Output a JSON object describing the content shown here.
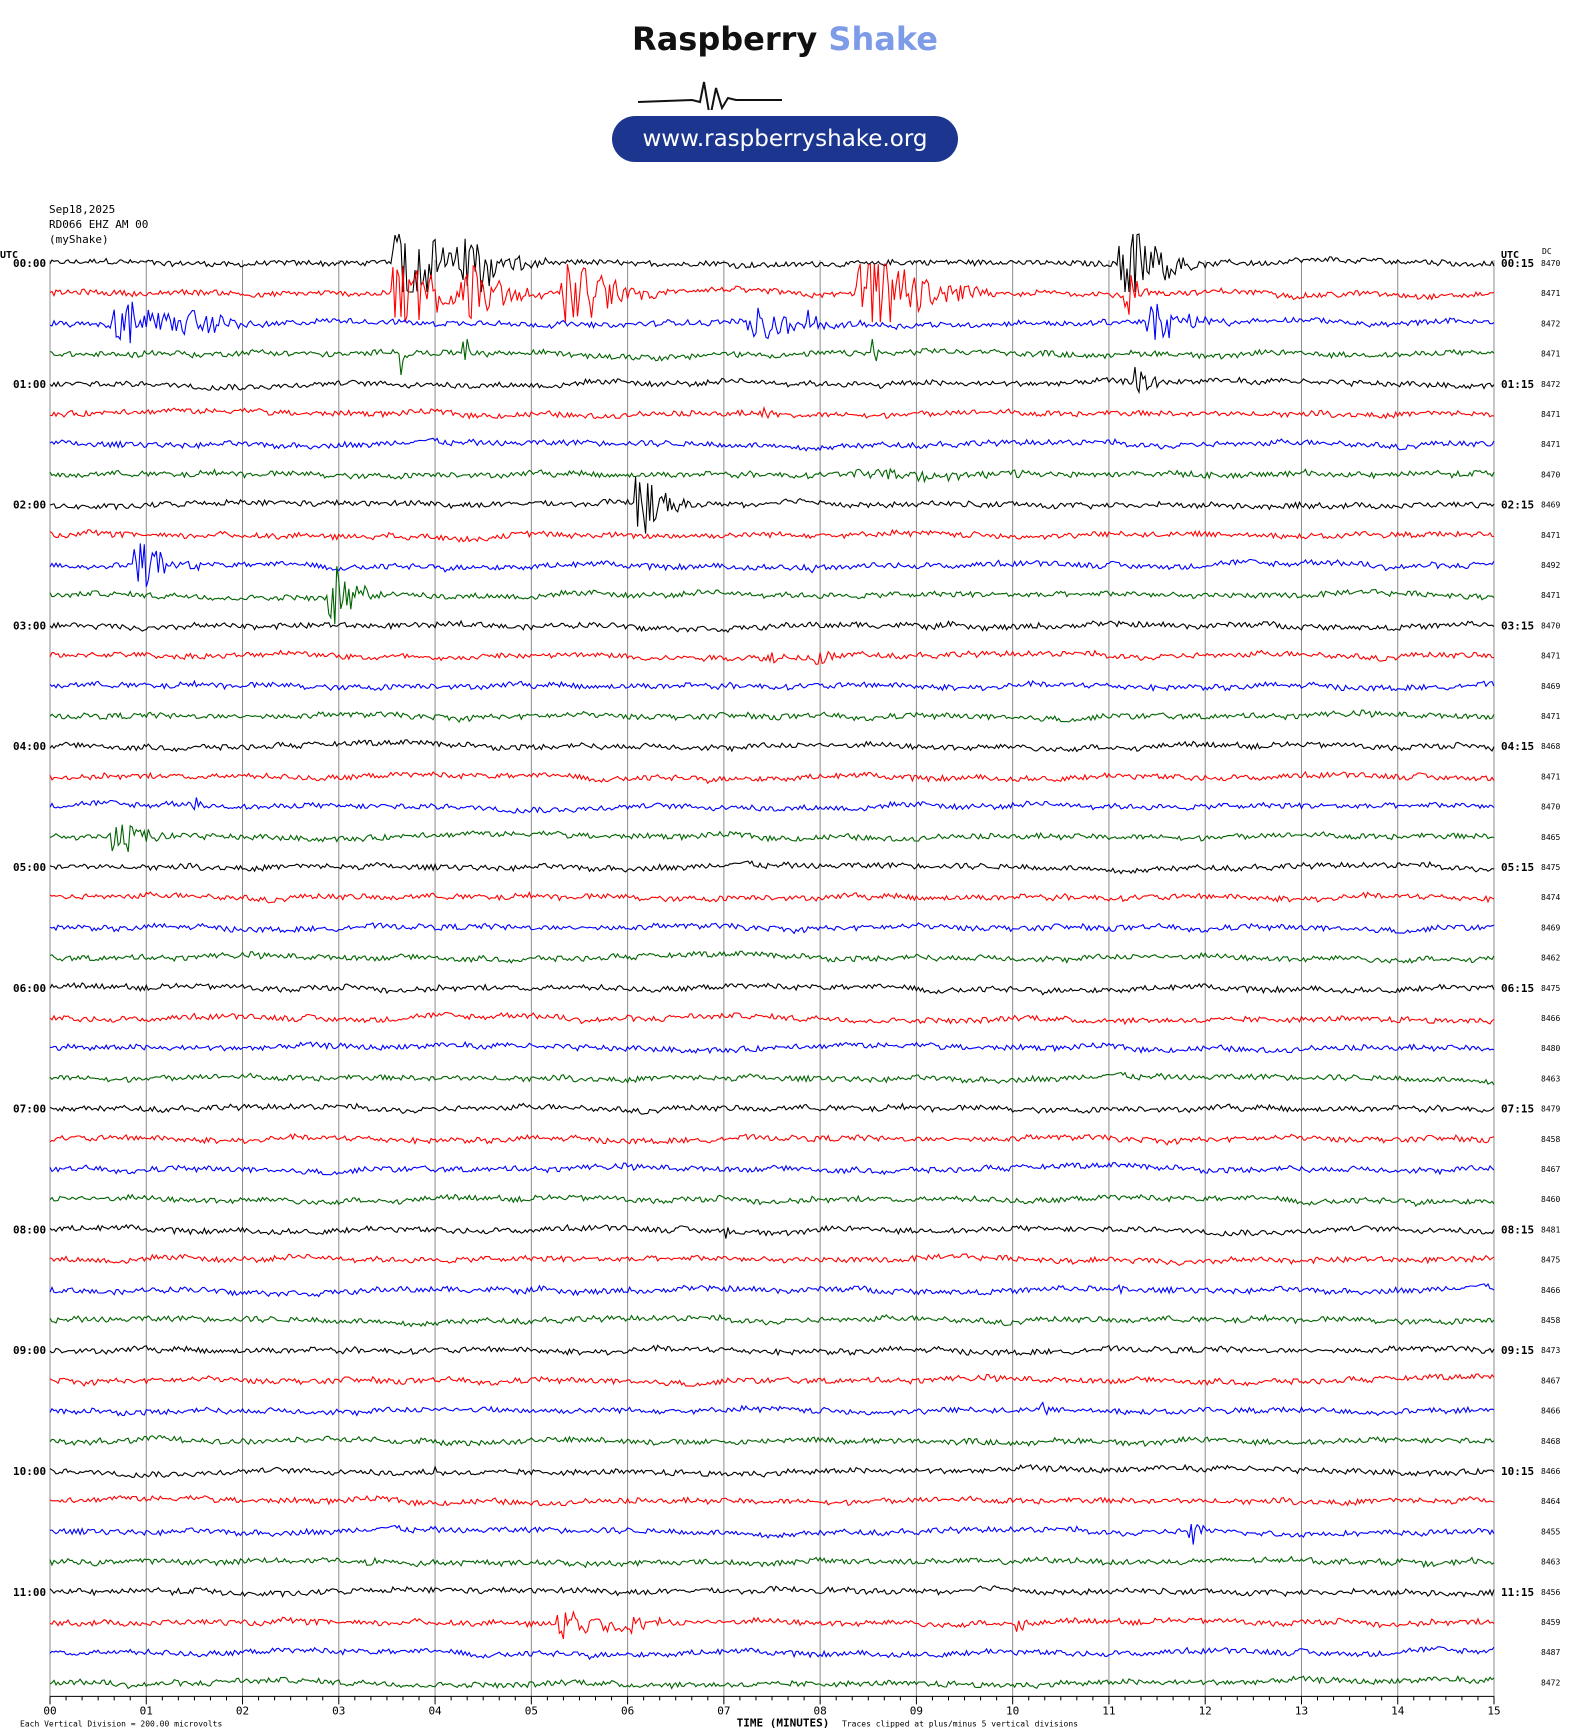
{
  "logo": {
    "brand_part1": "Raspberry",
    "brand_part2": "Shake",
    "website": "www.raspberryshake.org",
    "accent_color": "#7e9be8",
    "pill_color": "#1c3690"
  },
  "header": {
    "date": "Sep18,2025",
    "station": "RD066 EHZ AM 00",
    "source": "(myShake)"
  },
  "chart_data": {
    "type": "line",
    "chart_kind": "helicorder",
    "left_axis_label": "UTC",
    "right_axis_label": "UTC",
    "dc_label": "DC",
    "xlabel": "TIME (MINUTES)",
    "xlim": [
      0,
      15
    ],
    "x_ticks": [
      "00",
      "01",
      "02",
      "03",
      "04",
      "05",
      "06",
      "07",
      "08",
      "09",
      "10",
      "11",
      "12",
      "13",
      "14",
      "15"
    ],
    "footer_left": "Each Vertical Division =  200.00 microvolts",
    "footer_right": "Traces clipped at plus/minus 5 vertical divisions",
    "trace_colors": [
      "#000000",
      "#ff0000",
      "#0000ff",
      "#006400"
    ],
    "hours": [
      {
        "left": "00:00",
        "right": "00:15"
      },
      {
        "left": "01:00",
        "right": "01:15"
      },
      {
        "left": "02:00",
        "right": "02:15"
      },
      {
        "left": "03:00",
        "right": "03:15"
      },
      {
        "left": "04:00",
        "right": "04:15"
      },
      {
        "left": "05:00",
        "right": "05:15"
      },
      {
        "left": "06:00",
        "right": "06:15"
      },
      {
        "left": "07:00",
        "right": "07:15"
      },
      {
        "left": "08:00",
        "right": "08:15"
      },
      {
        "left": "09:00",
        "right": "09:15"
      },
      {
        "left": "10:00",
        "right": "10:15"
      },
      {
        "left": "11:00",
        "right": "11:15"
      }
    ],
    "dc_values": [
      "8470",
      "8471",
      "8472",
      "8471",
      "8472",
      "8471",
      "8471",
      "8470",
      "8469",
      "8471",
      "8492",
      "8471",
      "8470",
      "8471",
      "8469",
      "8471",
      "8468",
      "8471",
      "8470",
      "8465",
      "8475",
      "8474",
      "8469",
      "8462",
      "8475",
      "8466",
      "8480",
      "8463",
      "8479",
      "8458",
      "8467",
      "8460",
      "8481",
      "8475",
      "8466",
      "8458",
      "8473",
      "8467",
      "8466",
      "8468",
      "8466",
      "8464",
      "8455",
      "8463",
      "8456",
      "8459",
      "8487",
      "8472"
    ],
    "events": [
      {
        "row": 0,
        "minute": 3.7,
        "amplitude": 5,
        "duration": 1.0
      },
      {
        "row": 0,
        "minute": 4.35,
        "amplitude": 3.5,
        "duration": 0.8
      },
      {
        "row": 0,
        "minute": 11.2,
        "amplitude": 5,
        "duration": 0.7
      },
      {
        "row": 1,
        "minute": 3.7,
        "amplitude": 4,
        "duration": 1.0
      },
      {
        "row": 1,
        "minute": 4.35,
        "amplitude": 3,
        "duration": 0.9
      },
      {
        "row": 1,
        "minute": 5.45,
        "amplitude": 3.5,
        "duration": 1.0
      },
      {
        "row": 1,
        "minute": 8.55,
        "amplitude": 5,
        "duration": 1.2
      },
      {
        "row": 1,
        "minute": 11.2,
        "amplitude": 2.5,
        "duration": 0.3
      },
      {
        "row": 2,
        "minute": 0.8,
        "amplitude": 2,
        "duration": 1.2
      },
      {
        "row": 2,
        "minute": 1.5,
        "amplitude": 1,
        "duration": 1.0
      },
      {
        "row": 2,
        "minute": 7.35,
        "amplitude": 2,
        "duration": 0.8
      },
      {
        "row": 2,
        "minute": 7.9,
        "amplitude": 1,
        "duration": 0.6
      },
      {
        "row": 2,
        "minute": 11.5,
        "amplitude": 2,
        "duration": 0.8
      },
      {
        "row": 3,
        "minute": 3.65,
        "amplitude": 2,
        "duration": 0.1
      },
      {
        "row": 3,
        "minute": 4.3,
        "amplitude": 2,
        "duration": 0.1
      },
      {
        "row": 3,
        "minute": 8.55,
        "amplitude": 1.5,
        "duration": 0.1
      },
      {
        "row": 4,
        "minute": 11.3,
        "amplitude": 1.5,
        "duration": 0.4
      },
      {
        "row": 4,
        "minute": 8.6,
        "amplitude": 0.5,
        "duration": 0.1
      },
      {
        "row": 5,
        "minute": 7.4,
        "amplitude": 0.5,
        "duration": 0.3
      },
      {
        "row": 7,
        "minute": 8.8,
        "amplitude": 0.4,
        "duration": 4.0
      },
      {
        "row": 8,
        "minute": 6.15,
        "amplitude": 3.5,
        "duration": 0.5
      },
      {
        "row": 10,
        "minute": 0.95,
        "amplitude": 2.5,
        "duration": 0.6
      },
      {
        "row": 10,
        "minute": 7.8,
        "amplitude": 0.3,
        "duration": 0.8
      },
      {
        "row": 11,
        "minute": 2.95,
        "amplitude": 3,
        "duration": 0.5
      },
      {
        "row": 13,
        "minute": 8.0,
        "amplitude": 1,
        "duration": 0.3
      },
      {
        "row": 13,
        "minute": 7.5,
        "amplitude": 0.5,
        "duration": 0.4
      },
      {
        "row": 18,
        "minute": 1.5,
        "amplitude": 0.5,
        "duration": 0.1
      },
      {
        "row": 19,
        "minute": 0.7,
        "amplitude": 2,
        "duration": 0.6
      },
      {
        "row": 32,
        "minute": 7.0,
        "amplitude": 1.5,
        "duration": 0.1
      },
      {
        "row": 34,
        "minute": 11.1,
        "amplitude": 0.6,
        "duration": 0.1
      },
      {
        "row": 38,
        "minute": 4.5,
        "amplitude": 0.5,
        "duration": 0.1
      },
      {
        "row": 38,
        "minute": 10.3,
        "amplitude": 1,
        "duration": 0.1
      },
      {
        "row": 40,
        "minute": 4.0,
        "amplitude": 0.8,
        "duration": 0.1
      },
      {
        "row": 42,
        "minute": 11.85,
        "amplitude": 1.8,
        "duration": 0.2
      },
      {
        "row": 43,
        "minute": 3.3,
        "amplitude": 0.8,
        "duration": 0.1
      },
      {
        "row": 45,
        "minute": 5.4,
        "amplitude": 1.3,
        "duration": 1.0
      },
      {
        "row": 45,
        "minute": 6.05,
        "amplitude": 0.8,
        "duration": 0.4
      },
      {
        "row": 45,
        "minute": 10.05,
        "amplitude": 1.8,
        "duration": 0.1
      }
    ]
  }
}
